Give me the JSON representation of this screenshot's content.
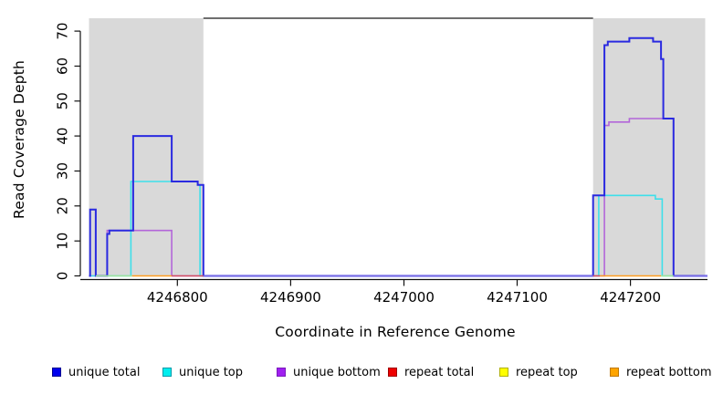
{
  "chart_data": {
    "type": "line",
    "subtype": "step",
    "title": "",
    "xlabel": "Coordinate in Reference Genome",
    "ylabel": "Read Coverage Depth",
    "xlim": [
      4246722,
      4247268
    ],
    "ylim": [
      0,
      73.5
    ],
    "x_ticks": [
      4246800,
      4246900,
      4247000,
      4247100,
      4247200
    ],
    "y_ticks": [
      0,
      10,
      20,
      30,
      40,
      50,
      60,
      70
    ],
    "grid": false,
    "legend_position": "bottom",
    "plot_background": "#ffffff",
    "shaded_region_color": "#d9d9d9",
    "shaded_regions": [
      {
        "from": 4246722,
        "to": 4246823
      },
      {
        "from": 4247167,
        "to": 4247266
      }
    ],
    "box_top_segment": {
      "from": 4246823,
      "to": 4247167,
      "color": "#5a5a5a"
    },
    "series": [
      {
        "name": "unique bottom",
        "color": "#b366d9",
        "line_width": 1.6,
        "steps": [
          [
            4246722,
            0
          ],
          [
            4246738,
            13
          ],
          [
            4246795,
            0
          ],
          [
            4247177,
            43
          ],
          [
            4247181,
            44
          ],
          [
            4247199,
            45
          ],
          [
            4247238,
            0
          ],
          [
            4247268,
            0
          ]
        ]
      },
      {
        "name": "unique top",
        "color": "#3edfea",
        "line_width": 1.6,
        "steps": [
          [
            4246722,
            0
          ],
          [
            4246759,
            27
          ],
          [
            4246818,
            26
          ],
          [
            4246820,
            0
          ],
          [
            4247172,
            23
          ],
          [
            4247222,
            22
          ],
          [
            4247228,
            0
          ],
          [
            4247268,
            0
          ]
        ]
      },
      {
        "name": "unique total",
        "color": "#2a2ae0",
        "line_width": 2,
        "steps": [
          [
            4246722,
            0
          ],
          [
            4246723,
            19
          ],
          [
            4246728,
            0
          ],
          [
            4246738,
            12
          ],
          [
            4246740,
            13
          ],
          [
            4246761,
            40
          ],
          [
            4246795,
            27
          ],
          [
            4246818,
            26
          ],
          [
            4246823,
            0
          ],
          [
            4247167,
            23
          ],
          [
            4247177,
            66
          ],
          [
            4247180,
            67
          ],
          [
            4247199,
            68
          ],
          [
            4247220,
            67
          ],
          [
            4247227,
            62
          ],
          [
            4247229,
            45
          ],
          [
            4247238,
            0
          ],
          [
            4247268,
            0
          ]
        ]
      },
      {
        "name": "repeat total",
        "color": "#d34f62",
        "line_width": 1.6,
        "steps": []
      },
      {
        "name": "repeat top",
        "color": "#f2e646",
        "line_width": 1.6,
        "steps": []
      },
      {
        "name": "repeat bottom",
        "color": "#ff9c20",
        "line_width": 1.6,
        "steps": []
      }
    ],
    "zero_line_segments": [
      {
        "from": 4246728,
        "to": 4246760,
        "color": "#a0e39b"
      },
      {
        "from": 4246760,
        "to": 4246795,
        "color": "#ff9c20"
      },
      {
        "from": 4246795,
        "to": 4246823,
        "color": "#d34f62"
      },
      {
        "from": 4246823,
        "to": 4247167,
        "color": "#7a6ce6"
      },
      {
        "from": 4247167,
        "to": 4247173,
        "color": "#d34f62"
      },
      {
        "from": 4247173,
        "to": 4247227,
        "color": "#ff9c20"
      },
      {
        "from": 4247227,
        "to": 4247238,
        "color": "#a0e39b"
      },
      {
        "from": 4247238,
        "to": 4247268,
        "color": "#7a6ce6"
      }
    ],
    "legend": [
      {
        "label": "unique total",
        "fill": "#0000ee",
        "border": "#000090"
      },
      {
        "label": "unique top",
        "fill": "#00eeee",
        "border": "#009aaa"
      },
      {
        "label": "unique bottom",
        "fill": "#a020f0",
        "border": "#7a1abc"
      },
      {
        "label": "repeat total",
        "fill": "#ee0000",
        "border": "#a00000"
      },
      {
        "label": "repeat top",
        "fill": "#ffff00",
        "border": "#b0b000"
      },
      {
        "label": "repeat bottom",
        "fill": "#ffa500",
        "border": "#c07800"
      }
    ]
  }
}
